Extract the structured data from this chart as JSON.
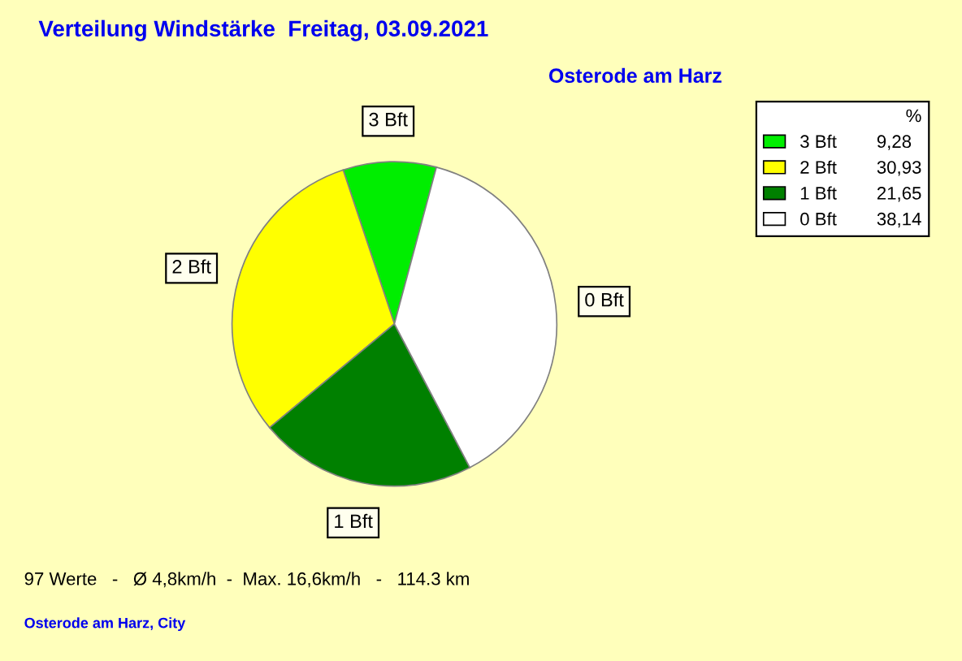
{
  "chart_data": {
    "type": "pie",
    "title": "Verteilung Windstärke  Freitag, 03.09.2021",
    "subtitle": "Osterode am Harz",
    "categories": [
      "3 Bft",
      "2 Bft",
      "1 Bft",
      "0 Bft"
    ],
    "values": [
      9.28,
      30.93,
      21.65,
      38.14
    ],
    "value_labels": [
      "9,28",
      "30,93",
      "21,65",
      "38,14"
    ],
    "colors": [
      "#00ee00",
      "#ffff00",
      "#008000",
      "#ffffff"
    ],
    "legend": "top right",
    "legend_title": "%",
    "annotations": [
      "97 Werte   -   Ø 4,8km/h  -  Max. 16,6km/h   -   114.3 km",
      "Osterode am Harz, City"
    ]
  }
}
